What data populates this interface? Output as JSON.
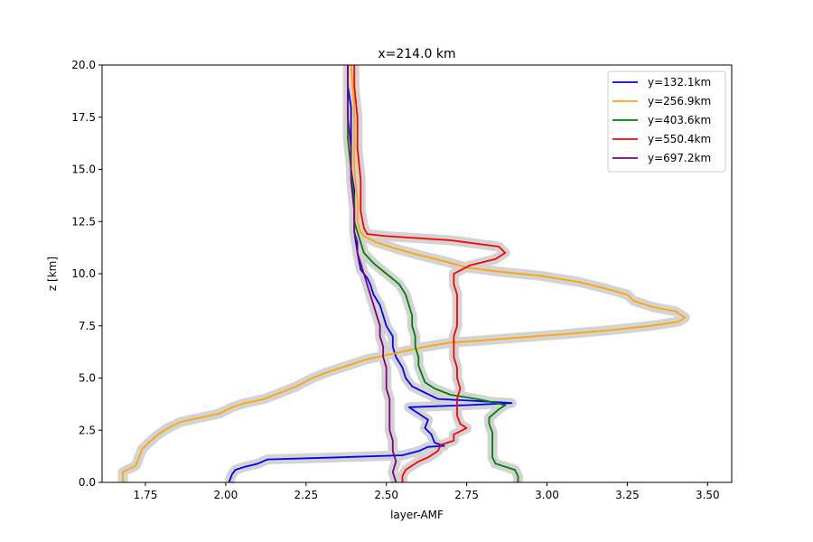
{
  "chart_data": {
    "type": "line",
    "title": "x=214.0 km",
    "xlabel": "layer-AMF",
    "ylabel": "z [km]",
    "xlim": [
      1.615,
      3.575
    ],
    "ylim": [
      0,
      20
    ],
    "xticks": [
      "1.75",
      "2.00",
      "2.25",
      "2.50",
      "2.75",
      "3.00",
      "3.25",
      "3.50"
    ],
    "xtick_values": [
      1.75,
      2.0,
      2.25,
      2.5,
      2.75,
      3.0,
      3.25,
      3.5
    ],
    "yticks": [
      "0.0",
      "2.5",
      "5.0",
      "7.5",
      "10.0",
      "12.5",
      "15.0",
      "17.5",
      "20.0"
    ],
    "ytick_values": [
      0,
      2.5,
      5.0,
      7.5,
      10.0,
      12.5,
      15.0,
      17.5,
      20.0
    ],
    "grid": false,
    "legend_position": "top-right",
    "uncertainty_band_color": "#d3d3d3",
    "series": [
      {
        "name": "y=132.1km",
        "color": "#0000ff",
        "points": [
          [
            2.01,
            0
          ],
          [
            2.02,
            0.4
          ],
          [
            2.03,
            0.6
          ],
          [
            2.06,
            0.75
          ],
          [
            2.1,
            0.9
          ],
          [
            2.13,
            1.1
          ],
          [
            2.35,
            1.2
          ],
          [
            2.55,
            1.3
          ],
          [
            2.6,
            1.5
          ],
          [
            2.63,
            1.7
          ],
          [
            2.68,
            1.75
          ],
          [
            2.65,
            1.9
          ],
          [
            2.64,
            2.3
          ],
          [
            2.62,
            2.6
          ],
          [
            2.63,
            3.0
          ],
          [
            2.6,
            3.3
          ],
          [
            2.57,
            3.6
          ],
          [
            2.75,
            3.7
          ],
          [
            2.89,
            3.8
          ],
          [
            2.78,
            3.9
          ],
          [
            2.66,
            4.0
          ],
          [
            2.62,
            4.3
          ],
          [
            2.58,
            4.6
          ],
          [
            2.56,
            5.0
          ],
          [
            2.55,
            5.5
          ],
          [
            2.53,
            6.0
          ],
          [
            2.52,
            6.5
          ],
          [
            2.52,
            7.0
          ],
          [
            2.5,
            7.5
          ],
          [
            2.49,
            8.0
          ],
          [
            2.48,
            8.5
          ],
          [
            2.46,
            9.0
          ],
          [
            2.45,
            9.5
          ],
          [
            2.44,
            9.8
          ],
          [
            2.42,
            10.2
          ],
          [
            2.41,
            11.0
          ],
          [
            2.4,
            12.0
          ],
          [
            2.4,
            13.0
          ],
          [
            2.4,
            14.0
          ],
          [
            2.39,
            15.0
          ],
          [
            2.39,
            16.0
          ],
          [
            2.39,
            17.0
          ],
          [
            2.39,
            18.0
          ],
          [
            2.38,
            19.0
          ],
          [
            2.38,
            20.0
          ]
        ]
      },
      {
        "name": "y=256.9km",
        "color": "#ffa500",
        "points": [
          [
            1.68,
            0
          ],
          [
            1.68,
            0.5
          ],
          [
            1.72,
            0.8
          ],
          [
            1.73,
            1.2
          ],
          [
            1.74,
            1.6
          ],
          [
            1.76,
            1.9
          ],
          [
            1.79,
            2.3
          ],
          [
            1.82,
            2.6
          ],
          [
            1.86,
            2.9
          ],
          [
            1.92,
            3.1
          ],
          [
            1.98,
            3.3
          ],
          [
            2.02,
            3.6
          ],
          [
            2.06,
            3.8
          ],
          [
            2.12,
            4.0
          ],
          [
            2.17,
            4.3
          ],
          [
            2.22,
            4.6
          ],
          [
            2.27,
            5.0
          ],
          [
            2.32,
            5.3
          ],
          [
            2.38,
            5.6
          ],
          [
            2.44,
            5.9
          ],
          [
            2.5,
            6.1
          ],
          [
            2.56,
            6.3
          ],
          [
            2.62,
            6.5
          ],
          [
            2.7,
            6.7
          ],
          [
            2.8,
            6.8
          ],
          [
            2.92,
            6.95
          ],
          [
            3.05,
            7.1
          ],
          [
            3.2,
            7.3
          ],
          [
            3.32,
            7.5
          ],
          [
            3.41,
            7.7
          ],
          [
            3.43,
            7.9
          ],
          [
            3.4,
            8.2
          ],
          [
            3.33,
            8.4
          ],
          [
            3.27,
            8.7
          ],
          [
            3.25,
            9.0
          ],
          [
            3.18,
            9.3
          ],
          [
            3.1,
            9.6
          ],
          [
            2.98,
            9.9
          ],
          [
            2.85,
            10.1
          ],
          [
            2.75,
            10.3
          ],
          [
            2.68,
            10.6
          ],
          [
            2.6,
            10.9
          ],
          [
            2.53,
            11.2
          ],
          [
            2.47,
            11.5
          ],
          [
            2.43,
            11.8
          ],
          [
            2.42,
            12.0
          ],
          [
            2.41,
            12.5
          ],
          [
            2.41,
            13.5
          ],
          [
            2.4,
            15.0
          ],
          [
            2.4,
            16.5
          ],
          [
            2.4,
            18.0
          ],
          [
            2.39,
            20.0
          ]
        ]
      },
      {
        "name": "y=403.6km",
        "color": "#008000",
        "points": [
          [
            2.91,
            0
          ],
          [
            2.91,
            0.3
          ],
          [
            2.9,
            0.6
          ],
          [
            2.84,
            0.9
          ],
          [
            2.83,
            1.2
          ],
          [
            2.83,
            1.6
          ],
          [
            2.83,
            2.0
          ],
          [
            2.83,
            2.4
          ],
          [
            2.82,
            2.8
          ],
          [
            2.82,
            3.1
          ],
          [
            2.85,
            3.5
          ],
          [
            2.87,
            3.7
          ],
          [
            2.83,
            3.85
          ],
          [
            2.78,
            4.0
          ],
          [
            2.7,
            4.2
          ],
          [
            2.65,
            4.5
          ],
          [
            2.62,
            4.8
          ],
          [
            2.61,
            5.2
          ],
          [
            2.6,
            5.6
          ],
          [
            2.6,
            6.0
          ],
          [
            2.59,
            6.5
          ],
          [
            2.59,
            7.0
          ],
          [
            2.58,
            7.5
          ],
          [
            2.58,
            8.0
          ],
          [
            2.57,
            8.5
          ],
          [
            2.56,
            9.0
          ],
          [
            2.54,
            9.5
          ],
          [
            2.5,
            10.0
          ],
          [
            2.46,
            10.5
          ],
          [
            2.43,
            11.0
          ],
          [
            2.42,
            11.5
          ],
          [
            2.41,
            12.0
          ],
          [
            2.4,
            12.5
          ],
          [
            2.4,
            13.5
          ],
          [
            2.39,
            15.0
          ],
          [
            2.38,
            16.5
          ],
          [
            2.38,
            18.0
          ],
          [
            2.38,
            20.0
          ]
        ]
      },
      {
        "name": "y=550.4km",
        "color": "#ff0000",
        "points": [
          [
            2.55,
            0
          ],
          [
            2.55,
            0.3
          ],
          [
            2.56,
            0.6
          ],
          [
            2.58,
            0.8
          ],
          [
            2.6,
            1.0
          ],
          [
            2.63,
            1.2
          ],
          [
            2.66,
            1.5
          ],
          [
            2.67,
            1.8
          ],
          [
            2.71,
            2.0
          ],
          [
            2.71,
            2.3
          ],
          [
            2.75,
            2.6
          ],
          [
            2.73,
            2.8
          ],
          [
            2.72,
            3.2
          ],
          [
            2.72,
            3.6
          ],
          [
            2.72,
            4.0
          ],
          [
            2.73,
            4.5
          ],
          [
            2.72,
            5.0
          ],
          [
            2.72,
            5.5
          ],
          [
            2.71,
            6.0
          ],
          [
            2.71,
            6.5
          ],
          [
            2.71,
            7.0
          ],
          [
            2.72,
            7.5
          ],
          [
            2.72,
            8.0
          ],
          [
            2.72,
            8.5
          ],
          [
            2.72,
            9.0
          ],
          [
            2.71,
            9.5
          ],
          [
            2.71,
            10.0
          ],
          [
            2.76,
            10.4
          ],
          [
            2.84,
            10.7
          ],
          [
            2.87,
            11.0
          ],
          [
            2.85,
            11.3
          ],
          [
            2.7,
            11.6
          ],
          [
            2.5,
            11.8
          ],
          [
            2.44,
            11.9
          ],
          [
            2.43,
            12.2
          ],
          [
            2.42,
            13.0
          ],
          [
            2.42,
            14.5
          ],
          [
            2.41,
            16.0
          ],
          [
            2.41,
            17.5
          ],
          [
            2.4,
            19.0
          ],
          [
            2.4,
            20.0
          ]
        ]
      },
      {
        "name": "y=697.2km",
        "color": "#800080",
        "points": [
          [
            2.53,
            0
          ],
          [
            2.52,
            0.5
          ],
          [
            2.53,
            1.0
          ],
          [
            2.52,
            1.5
          ],
          [
            2.52,
            2.0
          ],
          [
            2.51,
            2.5
          ],
          [
            2.51,
            3.0
          ],
          [
            2.51,
            3.5
          ],
          [
            2.51,
            4.0
          ],
          [
            2.5,
            4.5
          ],
          [
            2.5,
            5.0
          ],
          [
            2.5,
            5.5
          ],
          [
            2.49,
            6.0
          ],
          [
            2.49,
            6.5
          ],
          [
            2.48,
            7.0
          ],
          [
            2.48,
            7.5
          ],
          [
            2.47,
            8.0
          ],
          [
            2.46,
            8.5
          ],
          [
            2.45,
            9.0
          ],
          [
            2.44,
            9.5
          ],
          [
            2.43,
            10.0
          ],
          [
            2.42,
            10.5
          ],
          [
            2.41,
            11.0
          ],
          [
            2.41,
            11.5
          ],
          [
            2.4,
            12.0
          ],
          [
            2.4,
            13.0
          ],
          [
            2.39,
            14.5
          ],
          [
            2.39,
            16.0
          ],
          [
            2.38,
            17.5
          ],
          [
            2.38,
            19.0
          ],
          [
            2.38,
            20.0
          ]
        ]
      }
    ]
  }
}
